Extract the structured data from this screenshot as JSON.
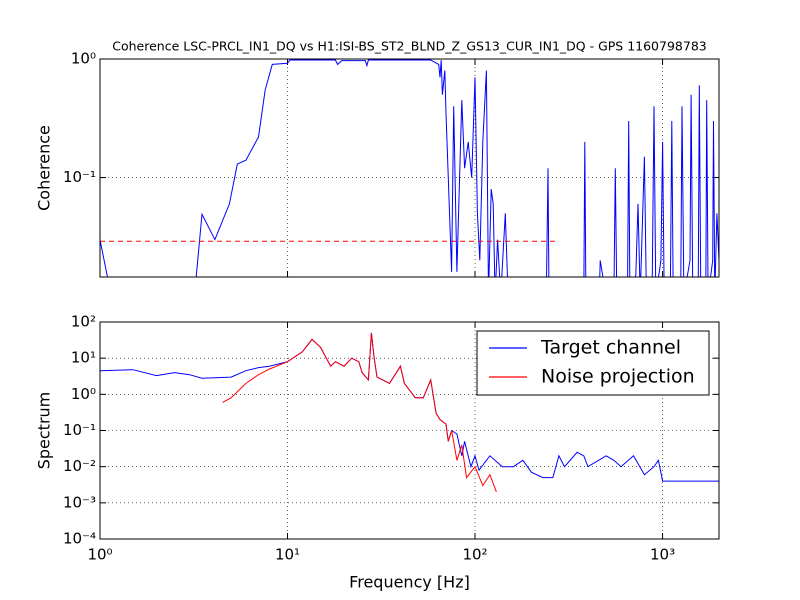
{
  "chart_data": [
    {
      "type": "line",
      "title": "Coherence LSC-PRCL_IN1_DQ vs H1:ISI-BS_ST2_BLND_Z_GS13_CUR_IN1_DQ - GPS 1160798783",
      "ylabel": "Coherence",
      "xlog": true,
      "ylog": true,
      "grid": true,
      "xticklabels": false,
      "xlim": [
        1,
        2000
      ],
      "ylim": [
        0.0145,
        1
      ],
      "xticks": [
        1,
        10,
        100,
        1000
      ],
      "yticks": [
        {
          "value": 0.1,
          "label": "10⁻¹"
        },
        {
          "value": 1,
          "label": "10⁰"
        }
      ],
      "series": [
        {
          "color": "#0000ff",
          "x": [
            1,
            1.1,
            3.25,
            3.5,
            4.1,
            4.9,
            5.4,
            6,
            7,
            7.6,
            8.3,
            10,
            10.3,
            18,
            18.5,
            19.5,
            26,
            26.5,
            27,
            58,
            64,
            65,
            66,
            67,
            69,
            70,
            75,
            77,
            80,
            85,
            88,
            92,
            96,
            100,
            103,
            106,
            110,
            115,
            118,
            122,
            125,
            128,
            132,
            137,
            145,
            150,
            240,
            245,
            248,
            380,
            385,
            390,
            460,
            465,
            500,
            550,
            560,
            570,
            650,
            660,
            670,
            720,
            740,
            760,
            800,
            820,
            880,
            900,
            920,
            980,
            1000,
            1020,
            1100,
            1120,
            1140,
            1250,
            1270,
            1300,
            1400,
            1420,
            1450,
            1550,
            1570,
            1600,
            1700,
            1720,
            1750,
            1850,
            1870,
            1900,
            1950,
            2000
          ],
          "values": [
            0.03,
            0.014,
            0.014,
            0.049,
            0.03,
            0.06,
            0.13,
            0.14,
            0.22,
            0.55,
            0.9,
            0.92,
            0.98,
            0.98,
            0.9,
            0.97,
            0.97,
            0.88,
            0.98,
            0.98,
            0.9,
            0.7,
            0.98,
            0.5,
            0.8,
            0.35,
            0.016,
            0.4,
            0.016,
            0.45,
            0.12,
            0.2,
            0.1,
            0.7,
            0.05,
            0.02,
            0.2,
            0.8,
            0.01,
            0.08,
            0.06,
            0.01,
            0.03,
            0.01,
            0.05,
            0.01,
            0.01,
            0.12,
            0.01,
            0.01,
            0.2,
            0.01,
            0.01,
            0.02,
            0.01,
            0.01,
            0.12,
            0.01,
            0.01,
            0.3,
            0.01,
            0.015,
            0.06,
            0.01,
            0.15,
            0.01,
            0.01,
            0.4,
            0.01,
            0.02,
            0.2,
            0.01,
            0.01,
            0.3,
            0.01,
            0.01,
            0.4,
            0.01,
            0.02,
            0.5,
            0.01,
            0.01,
            0.6,
            0.01,
            0.01,
            0.45,
            0.01,
            0.02,
            0.3,
            0.01,
            0.05,
            0.02
          ]
        },
        {
          "color": "#ff0000",
          "dashed": true,
          "x": [
            1,
            270
          ],
          "values": [
            0.029,
            0.029
          ]
        }
      ]
    },
    {
      "type": "line",
      "ylabel": "Spectrum",
      "xlabel": "Frequency [Hz]",
      "xlog": true,
      "ylog": true,
      "grid": true,
      "legend": "upper right",
      "xlim": [
        1,
        2000
      ],
      "ylim": [
        0.0001,
        100
      ],
      "xticks": [
        {
          "value": 1,
          "label": "10⁰"
        },
        {
          "value": 10,
          "label": "10¹"
        },
        {
          "value": 100,
          "label": "10²"
        },
        {
          "value": 1000,
          "label": "10³"
        }
      ],
      "yticks": [
        {
          "value": 0.0001,
          "label": "10⁻⁴"
        },
        {
          "value": 0.001,
          "label": "10⁻³"
        },
        {
          "value": 0.01,
          "label": "10⁻²"
        },
        {
          "value": 0.1,
          "label": "10⁻¹"
        },
        {
          "value": 1,
          "label": "10⁰"
        },
        {
          "value": 10,
          "label": "10¹"
        },
        {
          "value": 100,
          "label": "10²"
        }
      ],
      "series": [
        {
          "name": "Target channel",
          "color": "#0000ff",
          "x": [
            1,
            1.5,
            2,
            2.5,
            3,
            3.5,
            5,
            6,
            7,
            8,
            10,
            12,
            13.5,
            15,
            17,
            18,
            20,
            22,
            24,
            25,
            27,
            28,
            29,
            30,
            35,
            40,
            42,
            48,
            53,
            58,
            62,
            65,
            70,
            72,
            75,
            80,
            85,
            88,
            95,
            100,
            105,
            120,
            140,
            160,
            180,
            200,
            230,
            260,
            280,
            300,
            350,
            380,
            400,
            500,
            550,
            600,
            700,
            800,
            900,
            950,
            1000,
            1500,
            2000
          ],
          "values": [
            4.5,
            4.8,
            3.3,
            4,
            3.5,
            2.8,
            3,
            4.5,
            5.5,
            6,
            8,
            15,
            33,
            20,
            6,
            8,
            6,
            10,
            8,
            4,
            2.5,
            50,
            10,
            3,
            2,
            6,
            2,
            0.8,
            0.8,
            2.5,
            0.3,
            0.2,
            0.15,
            0.05,
            0.1,
            0.08,
            0.02,
            0.05,
            0.01,
            0.02,
            0.008,
            0.02,
            0.01,
            0.01,
            0.015,
            0.007,
            0.005,
            0.005,
            0.02,
            0.01,
            0.025,
            0.02,
            0.01,
            0.02,
            0.015,
            0.01,
            0.02,
            0.006,
            0.01,
            0.015,
            0.004,
            0.004,
            0.004
          ]
        },
        {
          "name": "Noise projection",
          "color": "#ff0000",
          "x": [
            4.5,
            5,
            6,
            7,
            8,
            10,
            12,
            13.5,
            15,
            17,
            18,
            20,
            22,
            24,
            25,
            27,
            28,
            29,
            30,
            35,
            40,
            42,
            48,
            53,
            58,
            62,
            65,
            70,
            72,
            75,
            80,
            85,
            90,
            100,
            110,
            120,
            130
          ],
          "values": [
            0.6,
            0.8,
            2,
            3.5,
            5,
            8,
            15,
            33,
            20,
            6,
            8,
            6,
            10,
            8,
            4,
            2.5,
            50,
            10,
            3,
            2,
            6,
            2,
            0.8,
            0.8,
            2.5,
            0.3,
            0.2,
            0.15,
            0.05,
            0.1,
            0.015,
            0.04,
            0.005,
            0.01,
            0.003,
            0.006,
            0.002
          ]
        }
      ]
    }
  ]
}
